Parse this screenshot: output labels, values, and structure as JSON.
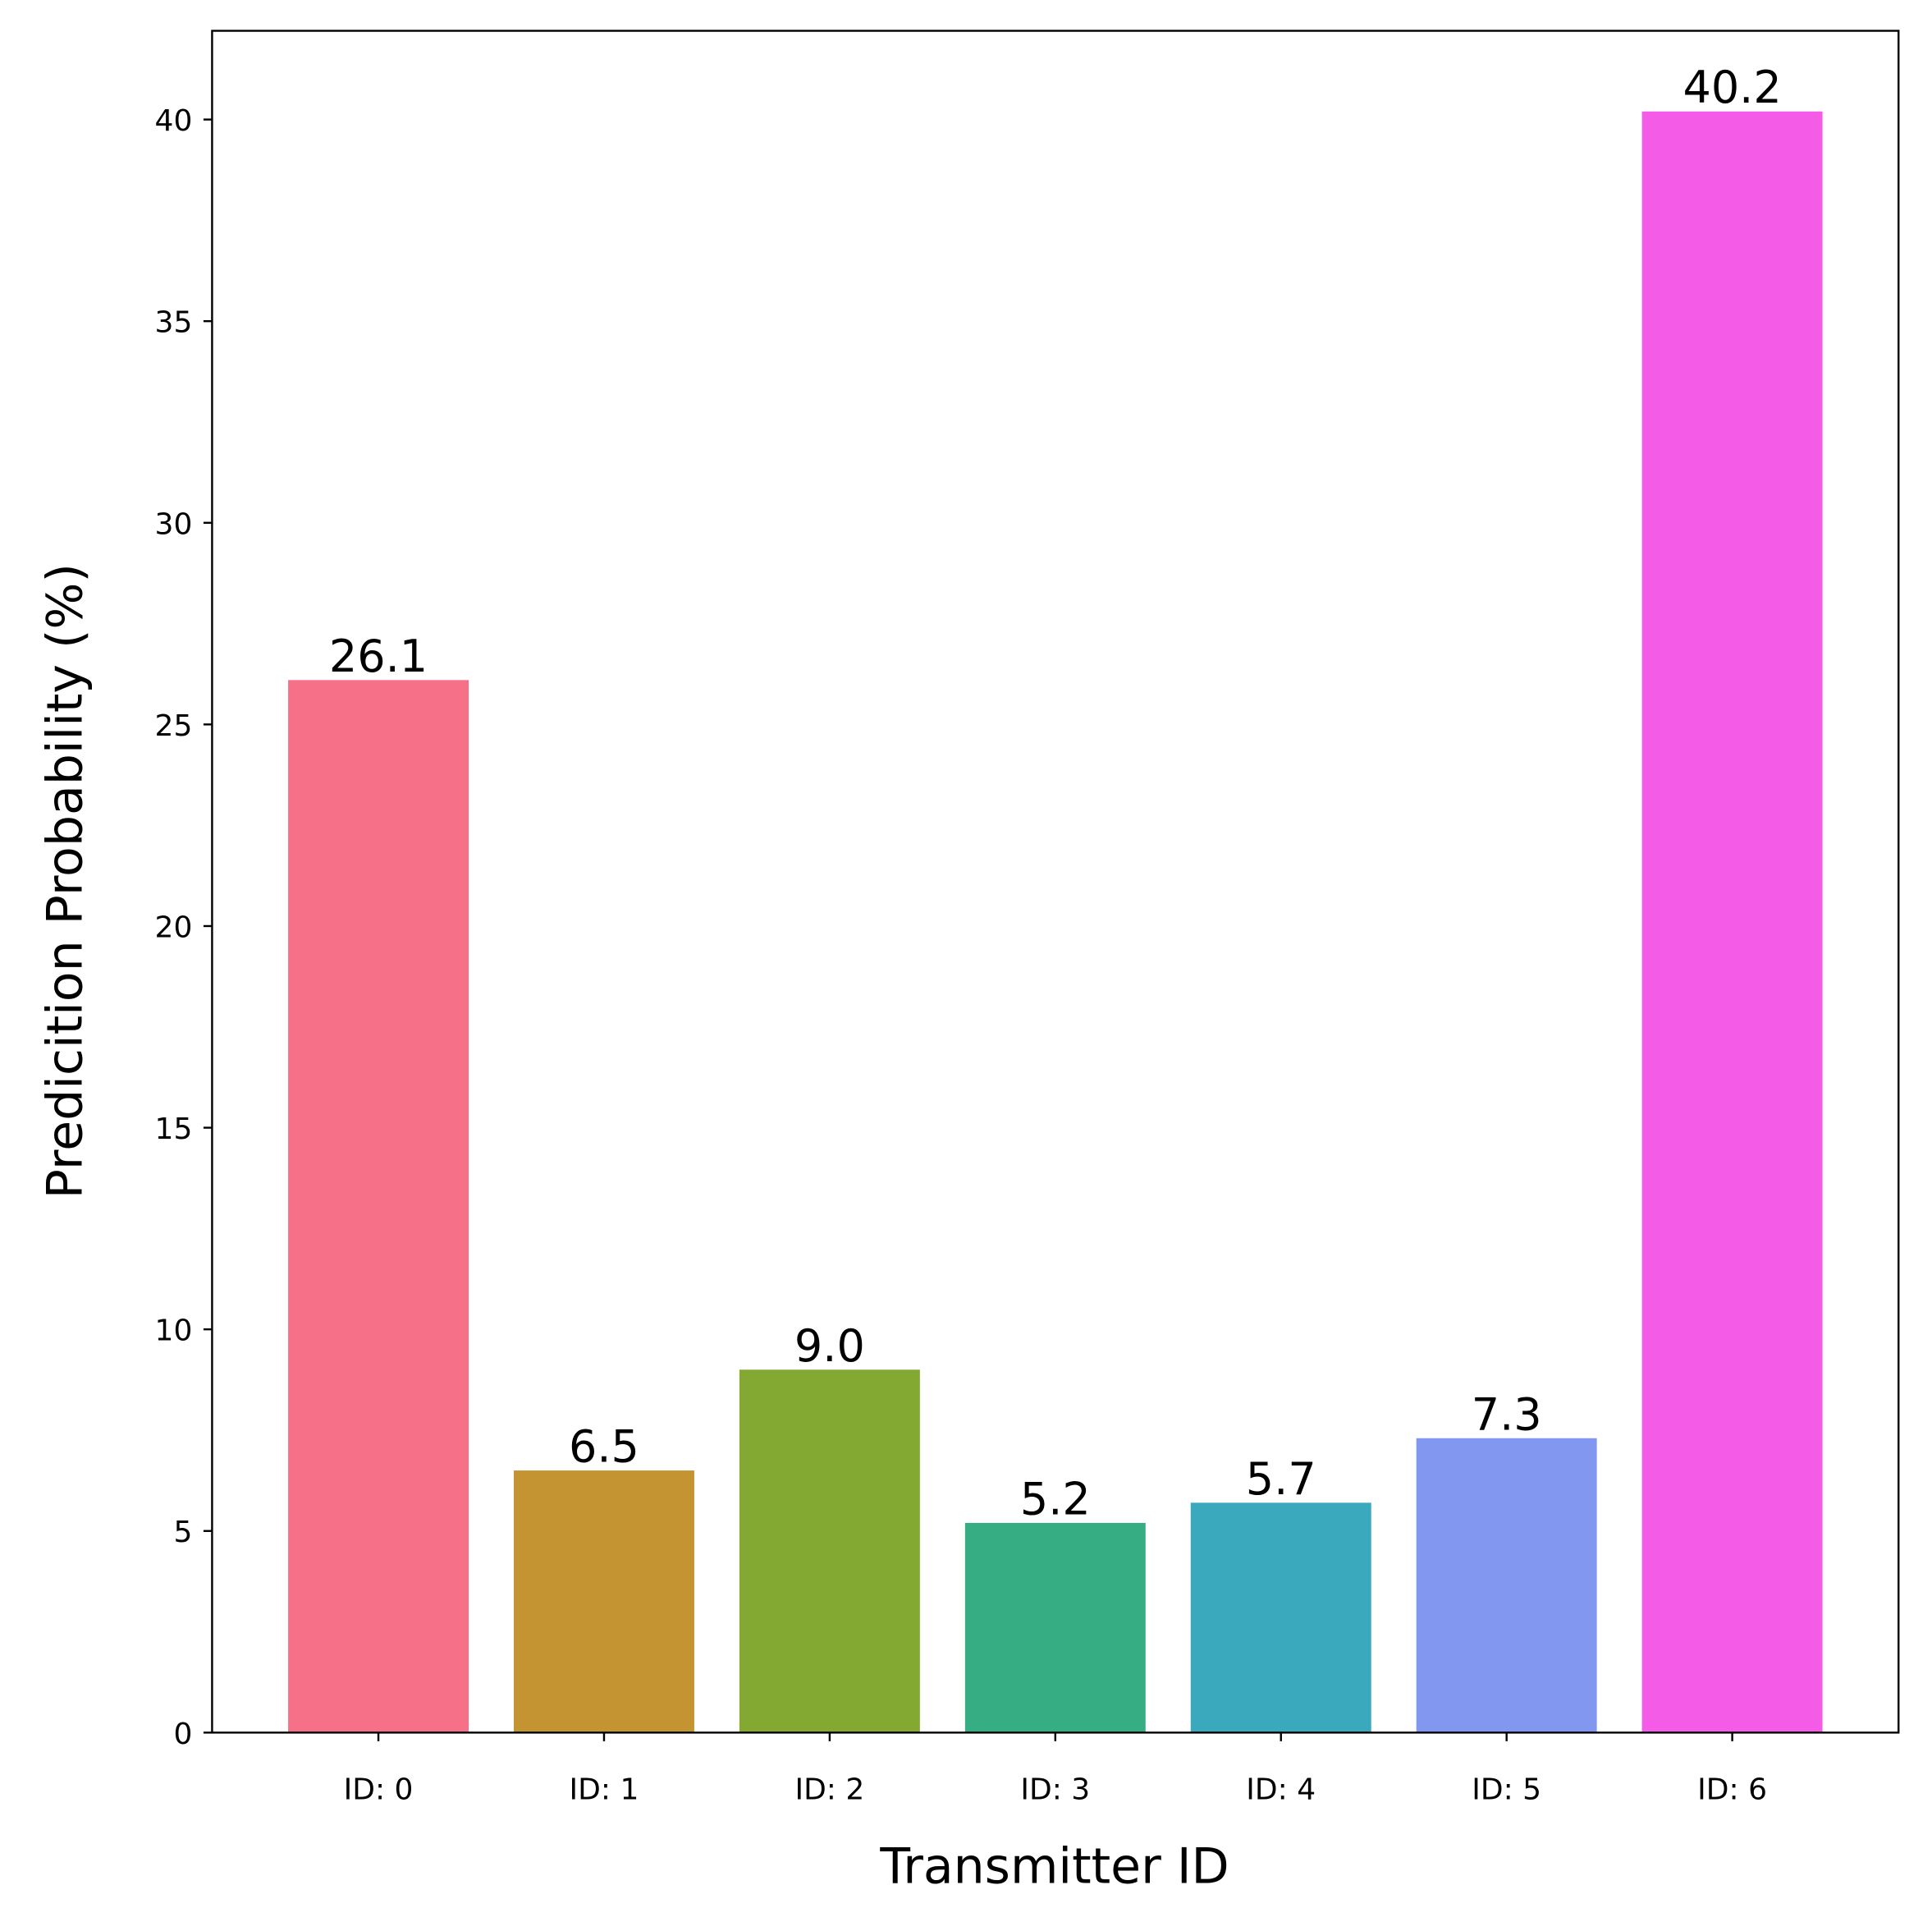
{
  "chart_data": {
    "type": "bar",
    "title": "",
    "xlabel": "Transmitter ID",
    "ylabel": "Predicition Probability (%)",
    "categories": [
      "ID: 0",
      "ID: 1",
      "ID: 2",
      "ID: 3",
      "ID: 4",
      "ID: 5",
      "ID: 6"
    ],
    "values": [
      26.1,
      6.5,
      9.0,
      5.2,
      5.7,
      7.3,
      40.2
    ],
    "value_labels": [
      "26.1",
      "6.5",
      "9.0",
      "5.2",
      "5.7",
      "7.3",
      "40.2"
    ],
    "colors": [
      "#f67088",
      "#c49433",
      "#84a933",
      "#36ad83",
      "#3aa9bd",
      "#8197f0",
      "#f45ce8"
    ],
    "ylim": [
      0,
      42.2
    ],
    "yticks": [
      0,
      5,
      10,
      15,
      20,
      25,
      30,
      35,
      40
    ],
    "ytick_labels": [
      "0",
      "5",
      "10",
      "15",
      "20",
      "25",
      "30",
      "35",
      "40"
    ],
    "grid": false,
    "legend": null
  }
}
